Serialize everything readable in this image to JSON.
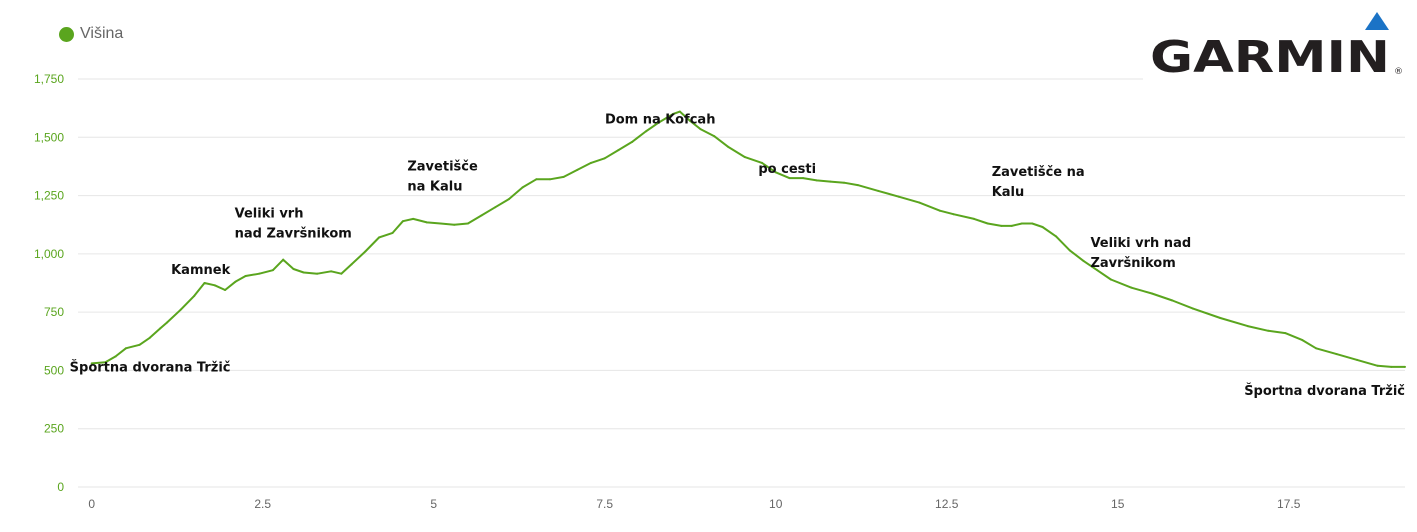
{
  "legend": {
    "label": "Višina"
  },
  "logo": {
    "text": "GARMIN",
    "mark": "®"
  },
  "colors": {
    "line": "#5aa51e",
    "axis_text": "#5aa51e",
    "xaxis_text": "#666666",
    "grid": "#e6e6e6",
    "logo_text": "#231f20",
    "logo_triangle": "#1b73c6"
  },
  "chart_data": {
    "type": "line",
    "title": "",
    "xlabel": "",
    "ylabel": "",
    "xlim": [
      -0.2,
      19.2
    ],
    "ylim": [
      0,
      1750
    ],
    "grid": true,
    "legend_position": "top-left",
    "x_ticks": [
      "0",
      "2.5",
      "5",
      "7.5",
      "10",
      "12.5",
      "15",
      "17.5"
    ],
    "y_ticks": [
      "0",
      "250",
      "500",
      "750",
      "1,000",
      "1,250",
      "1,500",
      "1,750"
    ],
    "series": [
      {
        "name": "Višina",
        "x": [
          0,
          0.2,
          0.35,
          0.5,
          0.7,
          0.85,
          1.0,
          1.1,
          1.3,
          1.5,
          1.65,
          1.8,
          1.95,
          2.1,
          2.25,
          2.45,
          2.65,
          2.8,
          2.95,
          3.1,
          3.3,
          3.5,
          3.65,
          3.8,
          4.0,
          4.2,
          4.4,
          4.55,
          4.7,
          4.9,
          5.1,
          5.3,
          5.5,
          5.7,
          5.9,
          6.1,
          6.3,
          6.5,
          6.7,
          6.9,
          7.1,
          7.3,
          7.5,
          7.7,
          7.9,
          8.1,
          8.3,
          8.5,
          8.6,
          8.75,
          8.9,
          9.1,
          9.3,
          9.55,
          9.8,
          10.0,
          10.2,
          10.4,
          10.6,
          10.8,
          11.0,
          11.2,
          11.5,
          11.8,
          12.1,
          12.4,
          12.6,
          12.9,
          13.1,
          13.3,
          13.45,
          13.6,
          13.75,
          13.9,
          14.1,
          14.3,
          14.5,
          14.7,
          14.9,
          15.2,
          15.5,
          15.8,
          16.1,
          16.5,
          16.9,
          17.2,
          17.45,
          17.7,
          17.9,
          18.2,
          18.5,
          18.8,
          19.0,
          19.2
        ],
        "y": [
          530,
          535,
          560,
          595,
          610,
          640,
          680,
          705,
          760,
          820,
          875,
          865,
          845,
          880,
          905,
          915,
          930,
          975,
          935,
          920,
          915,
          925,
          915,
          955,
          1010,
          1070,
          1090,
          1140,
          1150,
          1135,
          1130,
          1125,
          1130,
          1165,
          1200,
          1235,
          1285,
          1320,
          1320,
          1330,
          1360,
          1390,
          1410,
          1445,
          1480,
          1525,
          1565,
          1600,
          1610,
          1570,
          1535,
          1505,
          1460,
          1415,
          1390,
          1350,
          1325,
          1325,
          1315,
          1310,
          1305,
          1295,
          1270,
          1245,
          1220,
          1185,
          1170,
          1150,
          1130,
          1120,
          1120,
          1130,
          1130,
          1115,
          1075,
          1015,
          970,
          930,
          890,
          855,
          830,
          800,
          765,
          725,
          690,
          670,
          660,
          630,
          595,
          570,
          545,
          520,
          515,
          515
        ]
      }
    ],
    "annotations": [
      {
        "x": 0,
        "y": 530,
        "lines": [
          "Športna dvorana Tržič"
        ]
      },
      {
        "x": 1.6,
        "y": 875,
        "lines": [
          "Kamnek"
        ]
      },
      {
        "x": 2.85,
        "y": 975,
        "lines": [
          "Veliki vrh",
          "nad Završnikom"
        ]
      },
      {
        "x": 5.2,
        "y": 1130,
        "lines": [
          "Zavetišče",
          "na Kalu"
        ]
      },
      {
        "x": 8.6,
        "y": 1610,
        "lines": [
          "Dom na Kofcah"
        ]
      },
      {
        "x": 10.2,
        "y": 1325,
        "lines": [
          "po cesti"
        ]
      },
      {
        "x": 13.45,
        "y": 1120,
        "lines": [
          "Zavetišče na",
          "Kalu"
        ]
      },
      {
        "x": 14.85,
        "y": 900,
        "lines": [
          "Veliki vrh nad",
          "Završnikom"
        ]
      },
      {
        "x": 19.2,
        "y": 515,
        "lines": [
          "Športna dvorana Tržič"
        ]
      }
    ]
  }
}
